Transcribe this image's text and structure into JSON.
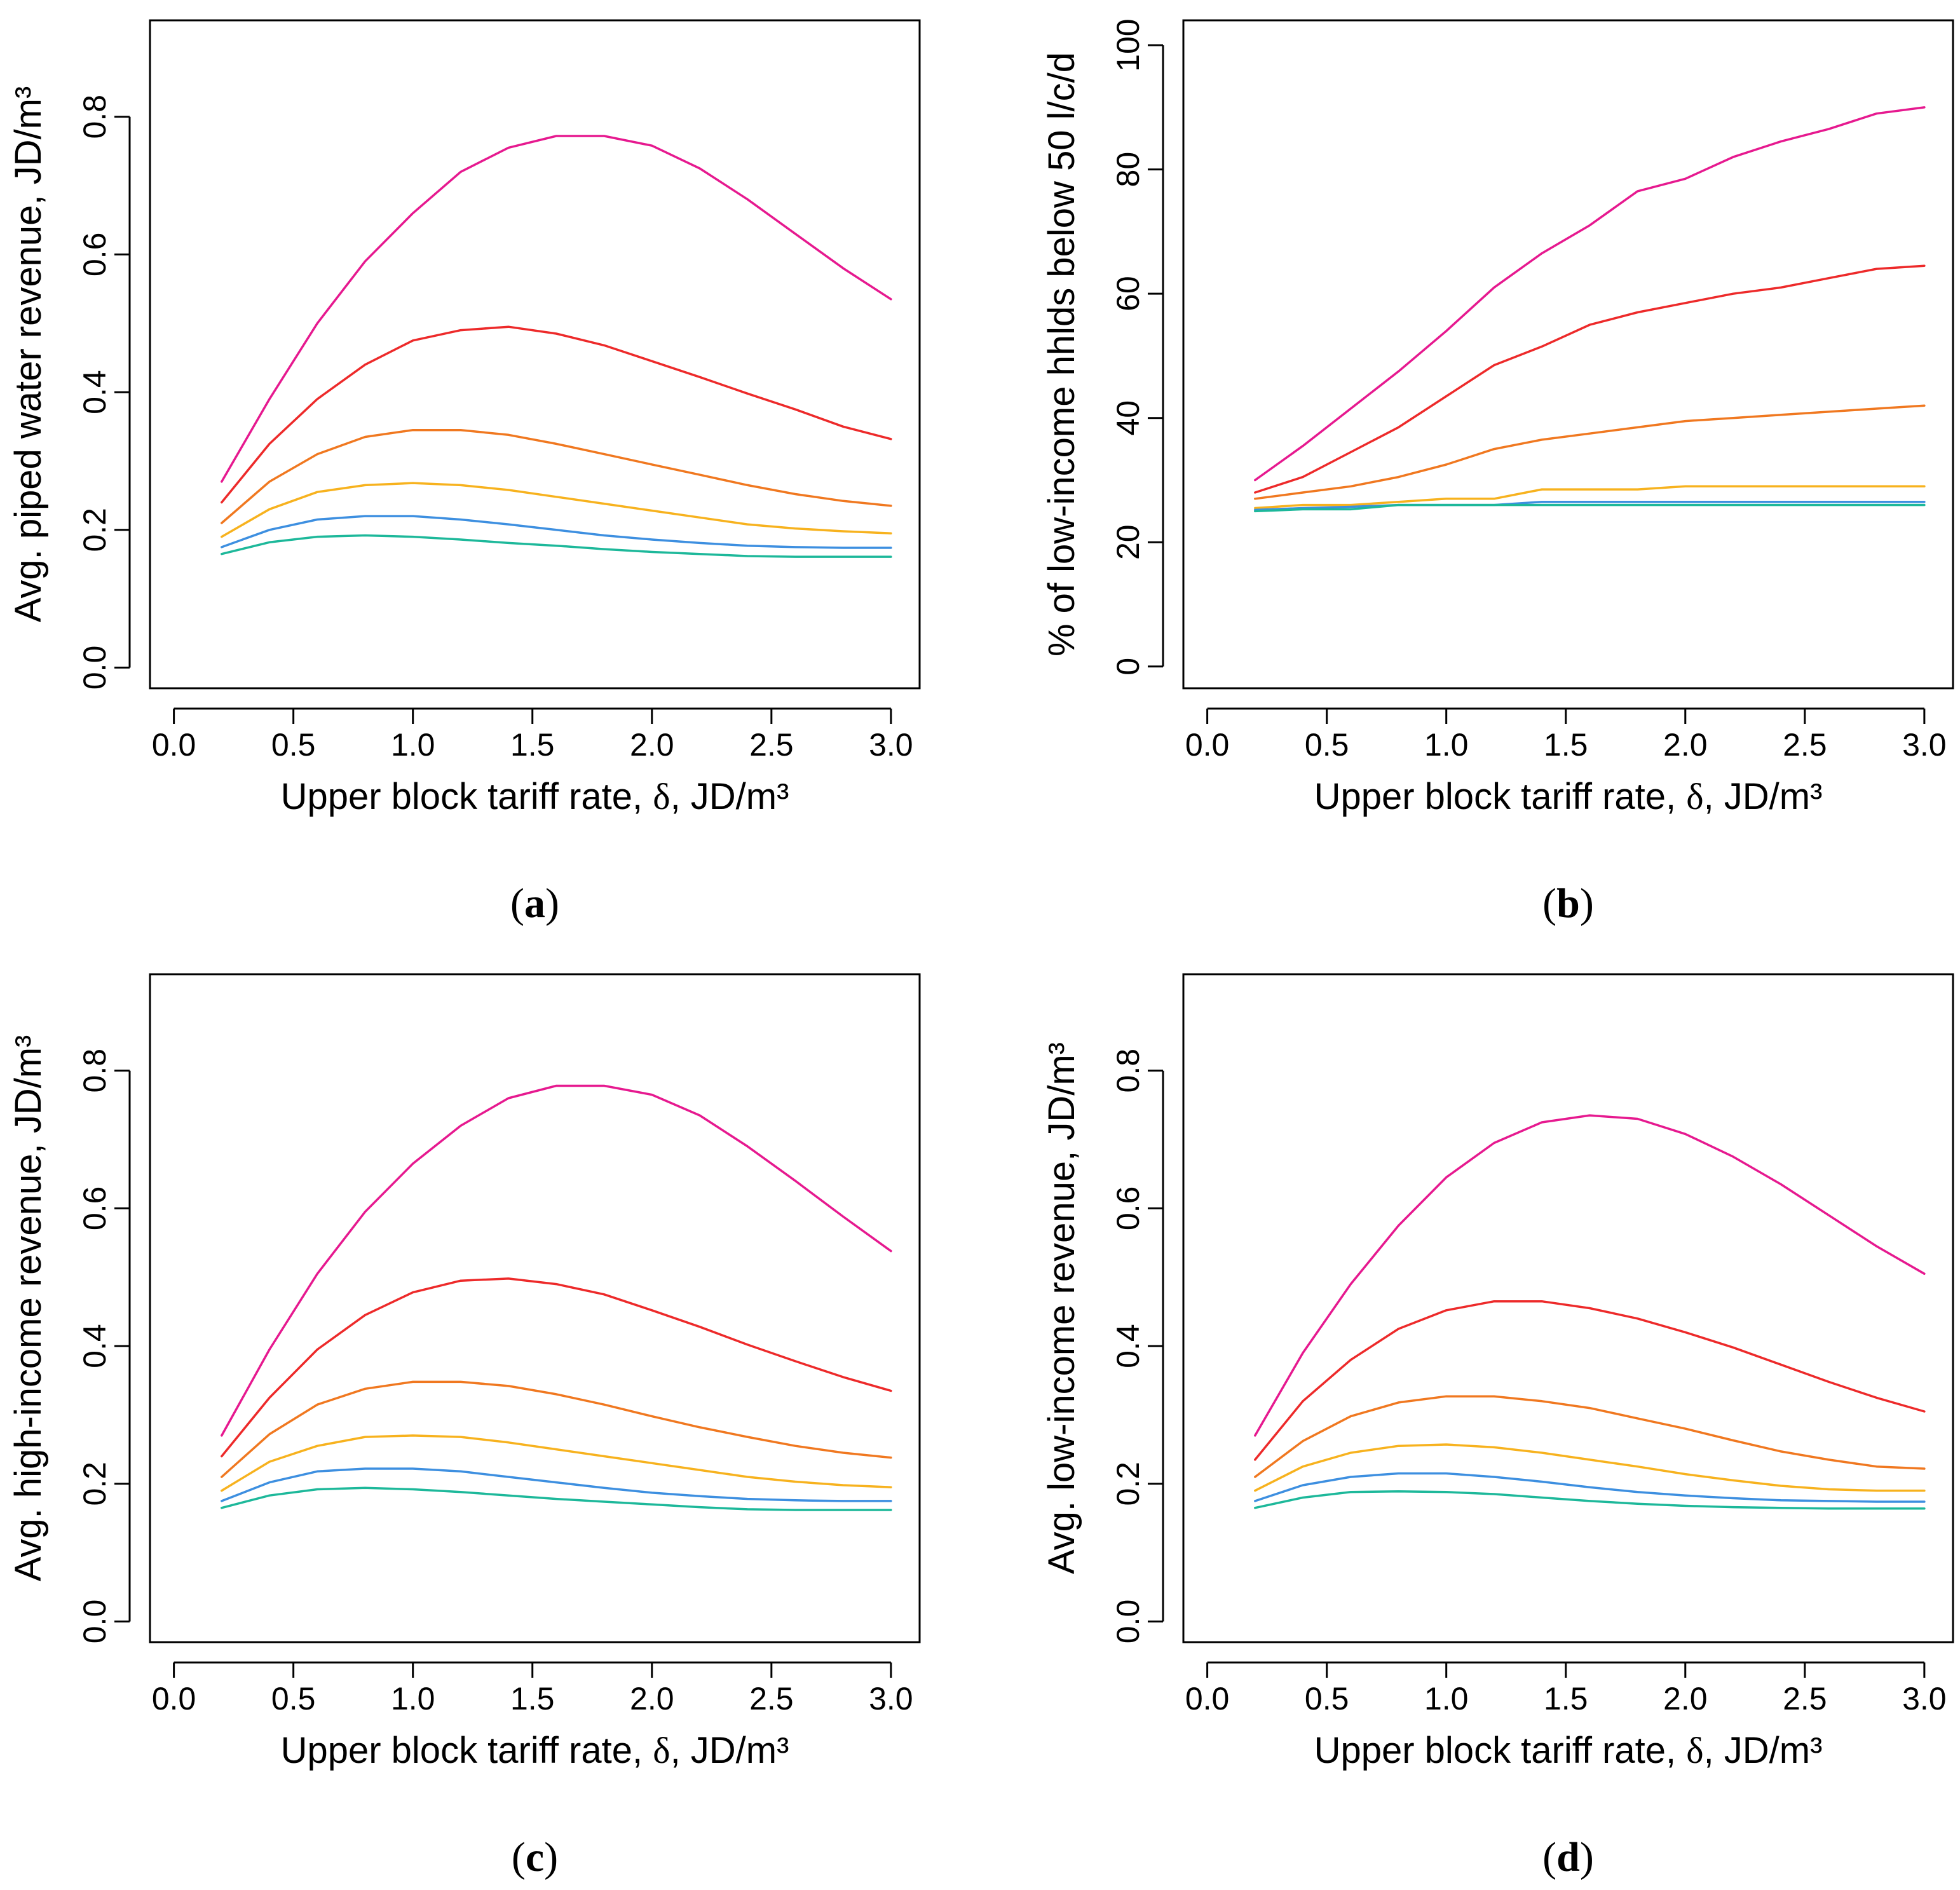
{
  "series_colors": [
    "#e6198f",
    "#ed2a2a",
    "#f07820",
    "#f7b21e",
    "#3d8fe0",
    "#1db89a"
  ],
  "chart_data": [
    {
      "id": "a",
      "type": "line",
      "panel_label": "a",
      "xlabel_prefix": "Upper block tariff rate, ",
      "xlabel_symbol": "δ",
      "xlabel_suffix": ", JD/m³",
      "ylabel": "Avg. piped water revenue, JD/m³",
      "xlim": [
        -0.1,
        3.12
      ],
      "ylim": [
        -0.03,
        0.94
      ],
      "xticks": [
        0.0,
        0.5,
        1.0,
        1.5,
        2.0,
        2.5,
        3.0
      ],
      "xtick_labels": [
        "0.0",
        "0.5",
        "1.0",
        "1.5",
        "2.0",
        "2.5",
        "3.0"
      ],
      "yticks": [
        0.0,
        0.2,
        0.4,
        0.6,
        0.8
      ],
      "ytick_labels": [
        "0.0",
        "0.2",
        "0.4",
        "0.6",
        "0.8"
      ],
      "x": [
        0.2,
        0.4,
        0.6,
        0.8,
        1.0,
        1.2,
        1.4,
        1.6,
        1.8,
        2.0,
        2.2,
        2.4,
        2.6,
        2.8,
        3.0
      ],
      "series": [
        {
          "values": [
            0.27,
            0.39,
            0.5,
            0.59,
            0.66,
            0.72,
            0.755,
            0.772,
            0.772,
            0.758,
            0.725,
            0.68,
            0.63,
            0.58,
            0.535
          ]
        },
        {
          "values": [
            0.24,
            0.325,
            0.39,
            0.44,
            0.475,
            0.49,
            0.495,
            0.485,
            0.468,
            0.445,
            0.422,
            0.398,
            0.375,
            0.35,
            0.332
          ]
        },
        {
          "values": [
            0.21,
            0.27,
            0.31,
            0.335,
            0.345,
            0.345,
            0.338,
            0.325,
            0.31,
            0.295,
            0.28,
            0.265,
            0.252,
            0.242,
            0.235
          ]
        },
        {
          "values": [
            0.19,
            0.23,
            0.255,
            0.265,
            0.268,
            0.265,
            0.258,
            0.248,
            0.238,
            0.228,
            0.218,
            0.208,
            0.202,
            0.198,
            0.195
          ]
        },
        {
          "values": [
            0.175,
            0.2,
            0.215,
            0.22,
            0.22,
            0.215,
            0.208,
            0.2,
            0.192,
            0.186,
            0.181,
            0.177,
            0.175,
            0.174,
            0.174
          ]
        },
        {
          "values": [
            0.165,
            0.182,
            0.19,
            0.192,
            0.19,
            0.186,
            0.181,
            0.177,
            0.172,
            0.168,
            0.165,
            0.162,
            0.161,
            0.161,
            0.161
          ]
        }
      ]
    },
    {
      "id": "b",
      "type": "line",
      "panel_label": "b",
      "xlabel_prefix": "Upper block tariff rate, ",
      "xlabel_symbol": "δ",
      "xlabel_suffix": ", JD/m³",
      "ylabel": "% of low-income hhlds below 50 l/c/d",
      "xlim": [
        -0.1,
        3.12
      ],
      "ylim": [
        -3.5,
        104.0
      ],
      "xticks": [
        0.0,
        0.5,
        1.0,
        1.5,
        2.0,
        2.5,
        3.0
      ],
      "xtick_labels": [
        "0.0",
        "0.5",
        "1.0",
        "1.5",
        "2.0",
        "2.5",
        "3.0"
      ],
      "yticks": [
        0,
        20,
        40,
        60,
        80,
        100
      ],
      "ytick_labels": [
        "0",
        "20",
        "40",
        "60",
        "80",
        "100"
      ],
      "x": [
        0.2,
        0.4,
        0.6,
        0.8,
        1.0,
        1.2,
        1.4,
        1.6,
        1.8,
        2.0,
        2.2,
        2.4,
        2.6,
        2.8,
        3.0
      ],
      "series": [
        {
          "values": [
            30,
            35.5,
            41.5,
            47.5,
            54,
            61,
            66.5,
            71,
            76.5,
            78.5,
            82,
            84.5,
            86.5,
            89,
            90
          ]
        },
        {
          "values": [
            28,
            30.5,
            34.5,
            38.5,
            43.5,
            48.5,
            51.5,
            55,
            57,
            58.5,
            60,
            61,
            62.5,
            64,
            64.5
          ]
        },
        {
          "values": [
            27,
            28,
            29,
            30.5,
            32.5,
            35,
            36.5,
            37.5,
            38.5,
            39.5,
            40,
            40.5,
            41,
            41.5,
            42
          ]
        },
        {
          "values": [
            25.5,
            26,
            26,
            26.5,
            27,
            27,
            28.5,
            28.5,
            28.5,
            29,
            29,
            29,
            29,
            29,
            29
          ]
        },
        {
          "values": [
            25.2,
            25.5,
            25.7,
            26,
            26,
            26,
            26.5,
            26.5,
            26.5,
            26.5,
            26.5,
            26.5,
            26.5,
            26.5,
            26.5
          ]
        },
        {
          "values": [
            25,
            25.3,
            25.3,
            26,
            26,
            26,
            26,
            26,
            26,
            26,
            26,
            26,
            26,
            26,
            26
          ]
        }
      ]
    },
    {
      "id": "c",
      "type": "line",
      "panel_label": "c",
      "xlabel_prefix": "Upper block tariff rate, ",
      "xlabel_symbol": "δ",
      "xlabel_suffix": ", JD/m³",
      "ylabel": "Avg. high-income revenue, JD/m³",
      "xlim": [
        -0.1,
        3.12
      ],
      "ylim": [
        -0.03,
        0.94
      ],
      "xticks": [
        0.0,
        0.5,
        1.0,
        1.5,
        2.0,
        2.5,
        3.0
      ],
      "xtick_labels": [
        "0.0",
        "0.5",
        "1.0",
        "1.5",
        "2.0",
        "2.5",
        "3.0"
      ],
      "yticks": [
        0.0,
        0.2,
        0.4,
        0.6,
        0.8
      ],
      "ytick_labels": [
        "0.0",
        "0.2",
        "0.4",
        "0.6",
        "0.8"
      ],
      "x": [
        0.2,
        0.4,
        0.6,
        0.8,
        1.0,
        1.2,
        1.4,
        1.6,
        1.8,
        2.0,
        2.2,
        2.4,
        2.6,
        2.8,
        3.0
      ],
      "series": [
        {
          "values": [
            0.27,
            0.395,
            0.505,
            0.595,
            0.665,
            0.72,
            0.76,
            0.778,
            0.778,
            0.765,
            0.735,
            0.69,
            0.64,
            0.588,
            0.538
          ]
        },
        {
          "values": [
            0.24,
            0.325,
            0.395,
            0.445,
            0.478,
            0.495,
            0.498,
            0.49,
            0.475,
            0.452,
            0.428,
            0.402,
            0.378,
            0.355,
            0.335
          ]
        },
        {
          "values": [
            0.21,
            0.272,
            0.315,
            0.338,
            0.348,
            0.348,
            0.342,
            0.33,
            0.315,
            0.298,
            0.282,
            0.268,
            0.255,
            0.245,
            0.238
          ]
        },
        {
          "values": [
            0.19,
            0.232,
            0.255,
            0.268,
            0.27,
            0.268,
            0.26,
            0.25,
            0.24,
            0.23,
            0.22,
            0.21,
            0.203,
            0.198,
            0.195
          ]
        },
        {
          "values": [
            0.175,
            0.202,
            0.218,
            0.222,
            0.222,
            0.218,
            0.21,
            0.202,
            0.194,
            0.187,
            0.182,
            0.178,
            0.176,
            0.175,
            0.175
          ]
        },
        {
          "values": [
            0.165,
            0.183,
            0.192,
            0.194,
            0.192,
            0.188,
            0.183,
            0.178,
            0.174,
            0.17,
            0.166,
            0.163,
            0.162,
            0.162,
            0.162
          ]
        }
      ]
    },
    {
      "id": "d",
      "type": "line",
      "panel_label": "d",
      "xlabel_prefix": "Upper block tariff rate, ",
      "xlabel_symbol": "δ",
      "xlabel_suffix": ", JD/m³",
      "ylabel": "Avg. low-income revenue, JD/m³",
      "xlim": [
        -0.1,
        3.12
      ],
      "ylim": [
        -0.03,
        0.94
      ],
      "xticks": [
        0.0,
        0.5,
        1.0,
        1.5,
        2.0,
        2.5,
        3.0
      ],
      "xtick_labels": [
        "0.0",
        "0.5",
        "1.0",
        "1.5",
        "2.0",
        "2.5",
        "3.0"
      ],
      "yticks": [
        0.0,
        0.2,
        0.4,
        0.6,
        0.8
      ],
      "ytick_labels": [
        "0.0",
        "0.2",
        "0.4",
        "0.6",
        "0.8"
      ],
      "x": [
        0.2,
        0.4,
        0.6,
        0.8,
        1.0,
        1.2,
        1.4,
        1.6,
        1.8,
        2.0,
        2.2,
        2.4,
        2.6,
        2.8,
        3.0
      ],
      "series": [
        {
          "values": [
            0.27,
            0.39,
            0.49,
            0.575,
            0.645,
            0.695,
            0.725,
            0.735,
            0.73,
            0.708,
            0.675,
            0.635,
            0.59,
            0.545,
            0.505
          ]
        },
        {
          "values": [
            0.235,
            0.32,
            0.38,
            0.425,
            0.452,
            0.465,
            0.465,
            0.455,
            0.44,
            0.42,
            0.398,
            0.373,
            0.348,
            0.325,
            0.305
          ]
        },
        {
          "values": [
            0.21,
            0.262,
            0.298,
            0.318,
            0.327,
            0.327,
            0.32,
            0.31,
            0.295,
            0.28,
            0.263,
            0.247,
            0.235,
            0.225,
            0.222
          ]
        },
        {
          "values": [
            0.19,
            0.225,
            0.245,
            0.255,
            0.257,
            0.253,
            0.245,
            0.235,
            0.225,
            0.214,
            0.205,
            0.197,
            0.192,
            0.19,
            0.19
          ]
        },
        {
          "values": [
            0.175,
            0.198,
            0.21,
            0.215,
            0.215,
            0.21,
            0.203,
            0.195,
            0.188,
            0.183,
            0.179,
            0.176,
            0.175,
            0.174,
            0.174
          ]
        },
        {
          "values": [
            0.165,
            0.18,
            0.188,
            0.189,
            0.188,
            0.185,
            0.18,
            0.175,
            0.171,
            0.168,
            0.166,
            0.165,
            0.164,
            0.164,
            0.164
          ]
        }
      ]
    }
  ]
}
